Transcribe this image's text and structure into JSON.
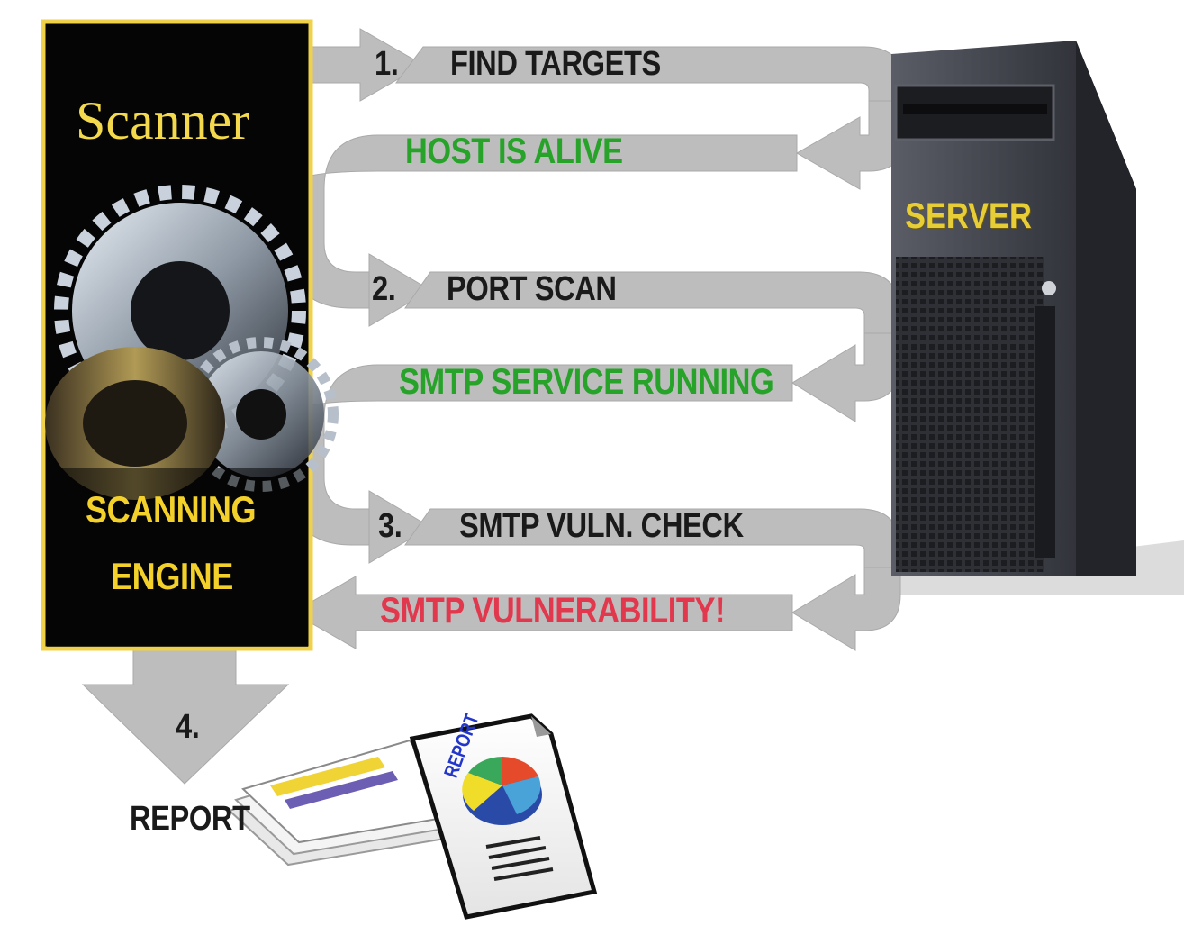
{
  "scanner": {
    "title": "Scanner",
    "engine_line1": "SCANNING",
    "engine_line2": "ENGINE"
  },
  "server": {
    "label": "SERVER"
  },
  "steps": [
    {
      "number": "1.",
      "label": "FIND TARGETS",
      "response": "HOST IS ALIVE"
    },
    {
      "number": "2.",
      "label": "PORT SCAN",
      "response": "SMTP SERVICE RUNNING"
    },
    {
      "number": "3.",
      "label": "SMTP VULN. CHECK",
      "response": "SMTP VULNERABILITY!"
    }
  ],
  "report": {
    "number": "4.",
    "label": "REPORT",
    "doc_title": "REPORT"
  },
  "colors": {
    "arrow_gray": "#bdbdbd",
    "scanner_border": "#f0d24a",
    "scanner_bg": "#050505",
    "title_gold": "#f3d94b",
    "success_green": "#27a32a",
    "alert_red": "#e2384d",
    "server_body": "#3a3c42"
  }
}
